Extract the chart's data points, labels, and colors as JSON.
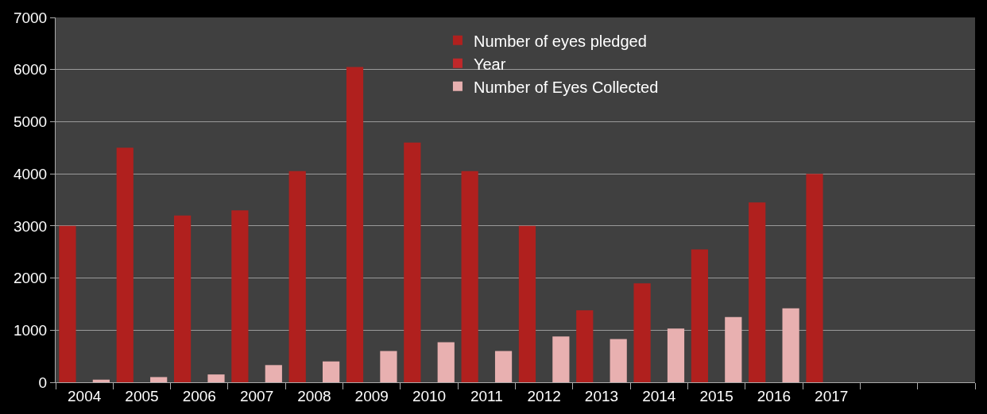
{
  "chart_data": {
    "type": "bar",
    "categories": [
      "2004",
      "2005",
      "2006",
      "2007",
      "2008",
      "2009",
      "2010",
      "2011",
      "2012",
      "2013",
      "2014",
      "2015",
      "2016",
      "2017",
      null,
      null
    ],
    "series": [
      {
        "name": "Number of eyes pledged",
        "color": "#b0201e",
        "values": [
          3000,
          4500,
          3200,
          3300,
          4050,
          6050,
          4600,
          4050,
          3000,
          1380,
          1900,
          2550,
          3450,
          4000,
          null,
          null
        ]
      },
      {
        "name": "Year",
        "color": "#c0282a",
        "values": [
          null,
          null,
          null,
          null,
          null,
          null,
          null,
          null,
          null,
          null,
          null,
          null,
          null,
          null,
          null,
          null
        ]
      },
      {
        "name": "Number of Eyes Collected",
        "color": "#e8b0b0",
        "values": [
          50,
          100,
          150,
          330,
          400,
          600,
          770,
          600,
          880,
          830,
          1030,
          1250,
          1420,
          null,
          null,
          null
        ]
      }
    ],
    "ylim": [
      0,
      7000
    ],
    "yticks": [
      0,
      1000,
      2000,
      3000,
      4000,
      5000,
      6000,
      7000
    ],
    "grid": "y",
    "legend": "top"
  }
}
